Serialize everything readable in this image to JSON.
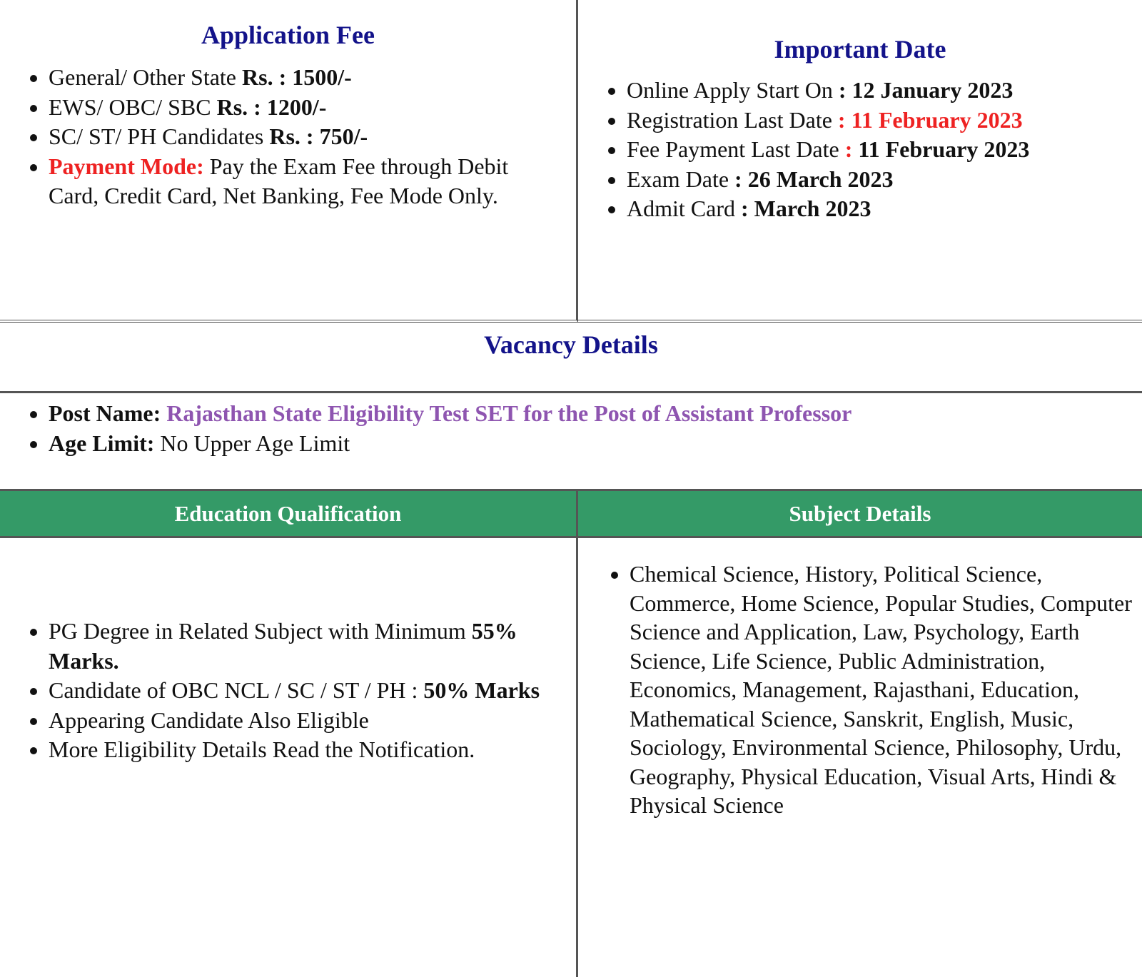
{
  "fee": {
    "title": "Application Fee",
    "items": [
      {
        "label": "General/ Other State ",
        "value": "Rs. : 1500/-"
      },
      {
        "label": "EWS/ OBC/ SBC ",
        "value": "Rs. : 1200/-"
      },
      {
        "label": "SC/ ST/ PH Candidates ",
        "value": "Rs. : 750/-"
      }
    ],
    "payment_label": "Payment Mode:",
    "payment_text": " Pay the Exam Fee through Debit Card, Credit Card, Net Banking, Fee Mode Only."
  },
  "dates": {
    "title": "Important Date",
    "items": [
      {
        "label": "Online Apply Start On ",
        "value": ": 12 January 2023"
      },
      {
        "label": "Registration Last Date ",
        "value": ": 11 February 2023"
      },
      {
        "label": "Fee Payment Last Date ",
        "sep": ": ",
        "value": "11 February 2023"
      },
      {
        "label": "Exam Date ",
        "value": ": 26 March 2023"
      },
      {
        "label": "Admit Card ",
        "value": ": March 2023"
      }
    ]
  },
  "vacancy": {
    "title": "Vacancy Details",
    "post_label": "Post Name: ",
    "post_value": "Rajasthan State Eligibility Test SET for the Post of Assistant Professor",
    "age_label": "Age Limit:",
    "age_value": " No Upper Age Limit"
  },
  "education": {
    "title": "Education Qualification",
    "items": [
      {
        "text": "PG Degree in Related Subject with Minimum ",
        "bold": "55% Marks."
      },
      {
        "text": "Candidate of OBC NCL / SC / ST / PH : ",
        "bold": "50% Marks"
      },
      {
        "text": "Appearing Candidate Also Eligible",
        "bold": ""
      },
      {
        "text": "More Eligibility Details Read the Notification.",
        "bold": ""
      }
    ]
  },
  "subjects": {
    "title": "Subject Details",
    "text": "Chemical Science, History, Political Science, Commerce, Home Science, Popular Studies, Computer Science and Application, Law, Psychology, Earth Science, Life Science, Public Administration, Economics, Management, Rajasthani, Education, Mathematical Science, Sanskrit, English, Music, Sociology, Environmental Science, Philosophy, Urdu, Geography, Physical Education, Visual Arts, Hindi & Physical Science"
  },
  "colors": {
    "heading": "#13138a",
    "red": "#ee2222",
    "purple": "#8e55b0",
    "green": "#349a67"
  }
}
